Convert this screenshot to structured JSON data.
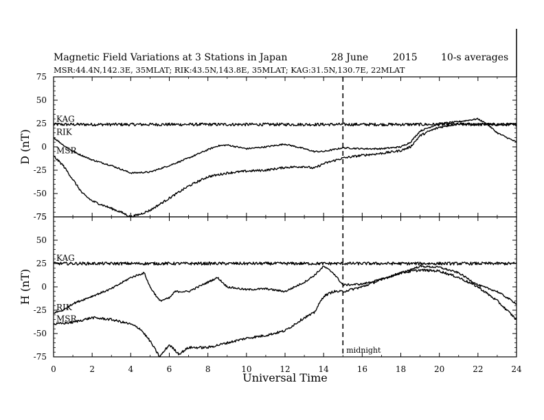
{
  "title": {
    "main": "Magnetic Field Variations at 3 Stations in Japan",
    "date": "28 June",
    "year": "2015",
    "averaging": "10-s averages",
    "stations": "MSR:44.4N,142.3E, 35MLAT;  RIK:43.5N,143.8E, 35MLAT;  KAG:31.5N,130.7E, 22MLAT"
  },
  "xlabel": "Universal Time",
  "midnight_label": "midnight",
  "chart_data": [
    {
      "type": "line",
      "panel": "D",
      "ylabel": "D (nT)",
      "xlim": [
        0,
        24
      ],
      "ylim": [
        -75,
        75
      ],
      "yticks": [
        75,
        50,
        25,
        0,
        -25,
        -50,
        -75
      ],
      "xticks": [
        0,
        2,
        4,
        6,
        8,
        10,
        12,
        14,
        16,
        18,
        20,
        22,
        24
      ],
      "midnight_x": 15,
      "series": [
        {
          "name": "KAG",
          "noise": 1.6,
          "x": [
            0,
            6,
            12,
            18,
            24
          ],
          "y": [
            24,
            24,
            24,
            24,
            24
          ]
        },
        {
          "name": "RIK",
          "noise": 0.8,
          "x": [
            0,
            0.5,
            1,
            2,
            3,
            4,
            5,
            6,
            7,
            8,
            8.5,
            9,
            10,
            11,
            12,
            13,
            13.5,
            14,
            15,
            16,
            17,
            18,
            18.5,
            19,
            20,
            21,
            22,
            22.5,
            23,
            24
          ],
          "y": [
            10,
            2,
            -5,
            -14,
            -20,
            -28,
            -27,
            -20,
            -12,
            -3,
            1,
            2,
            -2,
            0,
            3,
            -2,
            -5,
            -5,
            -1,
            -2,
            -2,
            0,
            5,
            17,
            25,
            27,
            30,
            24,
            15,
            5
          ]
        },
        {
          "name": "MSR",
          "noise": 1.2,
          "x": [
            0,
            0.5,
            1,
            1.5,
            2,
            2.5,
            3,
            3.5,
            4,
            4.5,
            5,
            6,
            7,
            8,
            9,
            10,
            11,
            12,
            13,
            13.5,
            14,
            15,
            16,
            17,
            18,
            18.5,
            19,
            19.5,
            20,
            21,
            22,
            23,
            24
          ],
          "y": [
            -10,
            -20,
            -35,
            -50,
            -58,
            -62,
            -66,
            -70,
            -75,
            -72,
            -68,
            -55,
            -42,
            -32,
            -28,
            -26,
            -25,
            -22,
            -21,
            -23,
            -18,
            -12,
            -9,
            -7,
            -4,
            0,
            12,
            17,
            21,
            25,
            24,
            24,
            24
          ]
        }
      ]
    },
    {
      "type": "line",
      "panel": "H",
      "ylabel": "H (nT)",
      "xlim": [
        0,
        24
      ],
      "ylim": [
        -75,
        75
      ],
      "yticks": [
        75,
        50,
        25,
        0,
        -25,
        -50,
        -75
      ],
      "xticks": [
        0,
        2,
        4,
        6,
        8,
        10,
        12,
        14,
        16,
        18,
        20,
        22,
        24
      ],
      "midnight_x": 15,
      "series": [
        {
          "name": "KAG",
          "noise": 1.6,
          "x": [
            0,
            6,
            12,
            18,
            24
          ],
          "y": [
            25,
            25,
            25,
            25,
            25
          ]
        },
        {
          "name": "RIK",
          "noise": 1.0,
          "x": [
            0,
            0.5,
            1,
            2,
            3,
            4,
            4.7,
            5,
            5.5,
            6,
            6.3,
            7,
            8,
            8.5,
            9,
            10,
            11,
            12,
            13,
            13.5,
            14,
            14.5,
            15,
            16,
            17,
            18,
            19,
            20,
            21,
            22,
            23,
            24
          ],
          "y": [
            -28,
            -25,
            -18,
            -10,
            -2,
            10,
            15,
            0,
            -15,
            -12,
            -5,
            -5,
            5,
            10,
            0,
            -3,
            -2,
            -5,
            5,
            12,
            22,
            15,
            2,
            3,
            8,
            15,
            22,
            21,
            15,
            2,
            -5,
            -18
          ]
        },
        {
          "name": "MSR",
          "noise": 1.3,
          "x": [
            0,
            1,
            2,
            3,
            4,
            4.5,
            5,
            5.5,
            6,
            6.5,
            7,
            8,
            9,
            10,
            11,
            12,
            13,
            13.5,
            14,
            14.5,
            15,
            16,
            17,
            18,
            19,
            20,
            21,
            22,
            23,
            24
          ],
          "y": [
            -40,
            -38,
            -33,
            -35,
            -40,
            -45,
            -58,
            -75,
            -62,
            -72,
            -65,
            -65,
            -60,
            -55,
            -52,
            -47,
            -33,
            -28,
            -10,
            -5,
            -5,
            0,
            8,
            15,
            18,
            17,
            10,
            0,
            -15,
            -35
          ]
        }
      ]
    }
  ]
}
